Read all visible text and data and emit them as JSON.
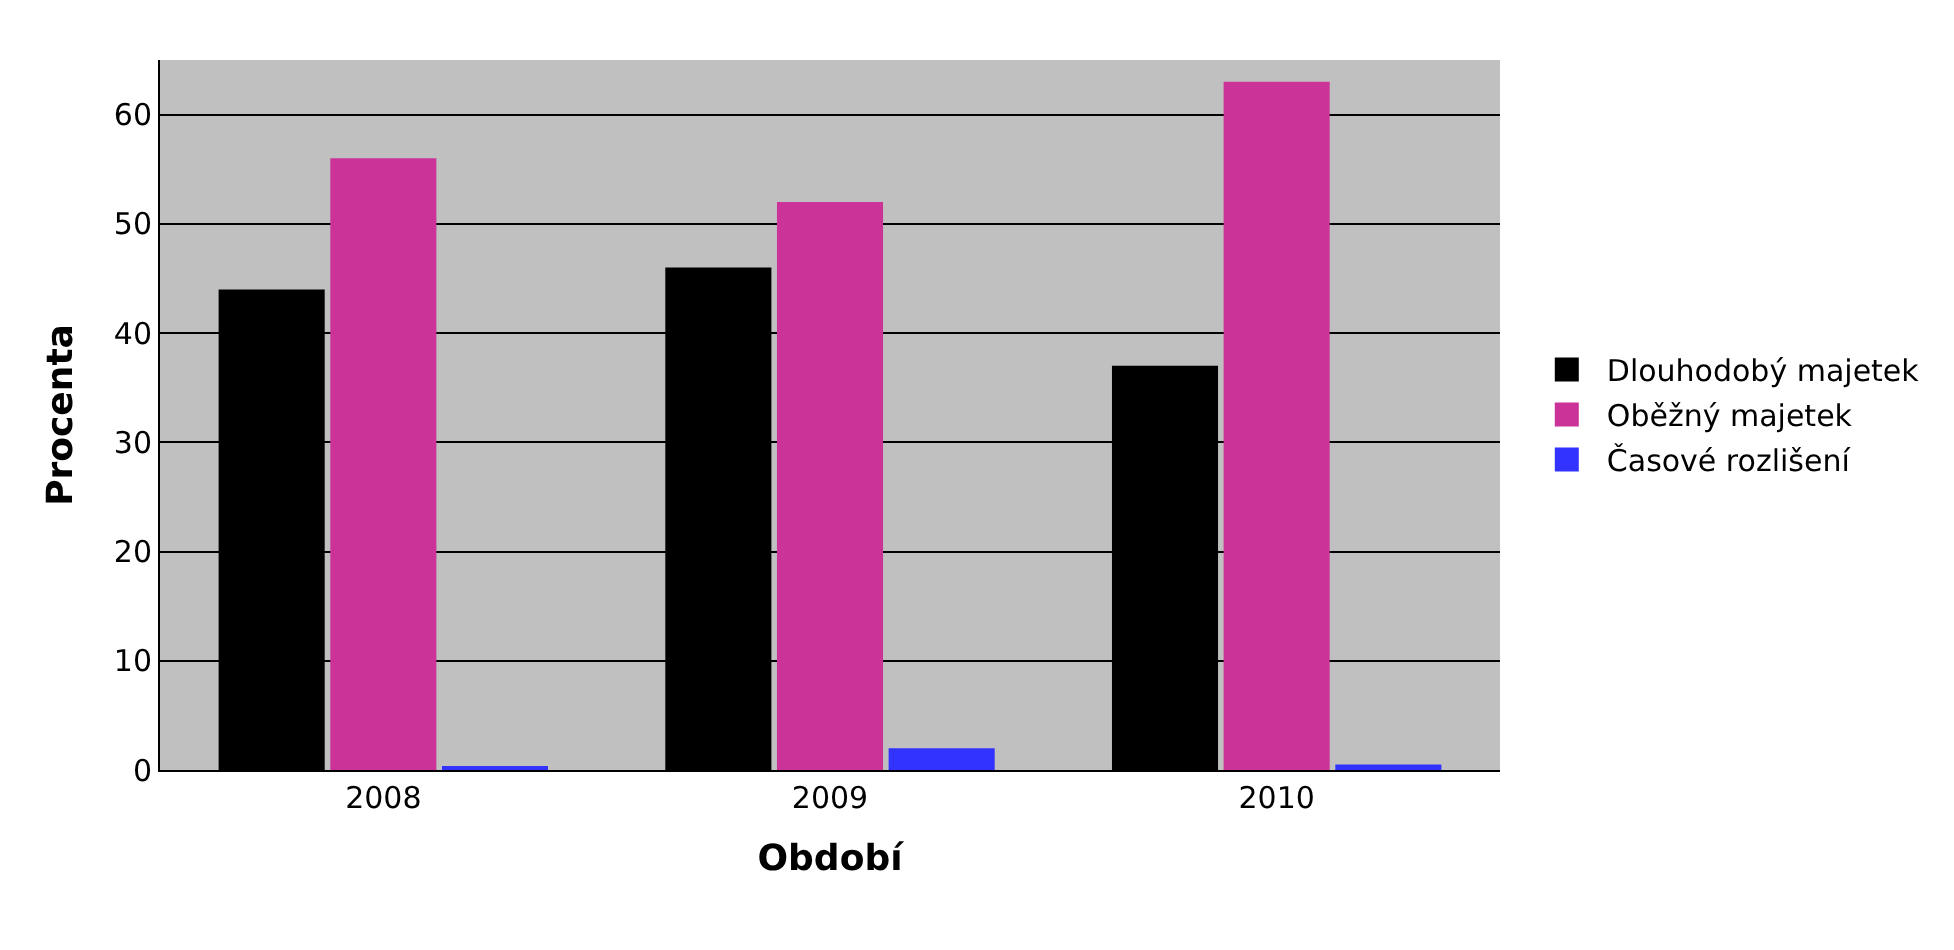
{
  "chart_data": {
    "type": "bar",
    "xlabel": "Období",
    "ylabel": "Procenta",
    "categories": [
      "2008",
      "2009",
      "2010"
    ],
    "series": [
      {
        "name": "Dlouhodobý majetek",
        "color": "#000000",
        "values": [
          44,
          46,
          37
        ]
      },
      {
        "name": "Oběžný majetek",
        "color": "#cc3399",
        "values": [
          56,
          52,
          63
        ]
      },
      {
        "name": "Časové rozlišení",
        "color": "#3333ff",
        "values": [
          0.3,
          2,
          0.5
        ]
      }
    ],
    "ylim": [
      0,
      65
    ],
    "yticks": [
      0,
      10,
      20,
      30,
      40,
      50,
      60
    ],
    "grid": "y",
    "legend": "right"
  }
}
